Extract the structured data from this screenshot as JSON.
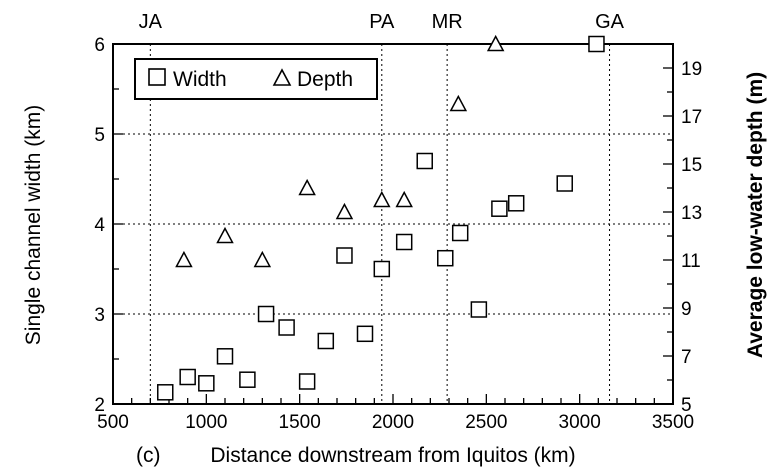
{
  "chart_data": {
    "type": "scatter",
    "panel_label": "(c)",
    "xlabel": "Distance downstream from Iquitos (km)",
    "ylabel": "Single channel width (km)",
    "y2label": "Average low-water depth (m)",
    "xlim": [
      500,
      3500
    ],
    "ylim": [
      2,
      6
    ],
    "y2lim": [
      5,
      20
    ],
    "x_ticks": [
      500,
      1000,
      1500,
      2000,
      2500,
      3000,
      3500
    ],
    "y_ticks": [
      2,
      3,
      4,
      5,
      6
    ],
    "y2_ticks": [
      5,
      7,
      9,
      11,
      13,
      15,
      17,
      19
    ],
    "grid": "dotted",
    "vertical_markers": [
      {
        "label": "JA",
        "x": 700
      },
      {
        "label": "PA",
        "x": 1940
      },
      {
        "label": "MR",
        "x": 2290
      },
      {
        "label": "GA",
        "x": 3160
      }
    ],
    "legend_position": "top-left",
    "series": [
      {
        "name": "Width",
        "marker": "square",
        "axis": "left",
        "unit": "km",
        "points": [
          {
            "x": 780,
            "y": 2.13
          },
          {
            "x": 900,
            "y": 2.3
          },
          {
            "x": 1000,
            "y": 2.23
          },
          {
            "x": 1100,
            "y": 2.53
          },
          {
            "x": 1220,
            "y": 2.27
          },
          {
            "x": 1320,
            "y": 3.0
          },
          {
            "x": 1430,
            "y": 2.85
          },
          {
            "x": 1540,
            "y": 2.25
          },
          {
            "x": 1640,
            "y": 2.7
          },
          {
            "x": 1740,
            "y": 3.65
          },
          {
            "x": 1850,
            "y": 2.78
          },
          {
            "x": 1940,
            "y": 3.5
          },
          {
            "x": 2060,
            "y": 3.8
          },
          {
            "x": 2170,
            "y": 4.7
          },
          {
            "x": 2280,
            "y": 3.62
          },
          {
            "x": 2360,
            "y": 3.9
          },
          {
            "x": 2460,
            "y": 3.05
          },
          {
            "x": 2570,
            "y": 4.17
          },
          {
            "x": 2660,
            "y": 4.23
          },
          {
            "x": 2920,
            "y": 4.45
          },
          {
            "x": 3090,
            "y": 6.0
          }
        ]
      },
      {
        "name": "Depth",
        "marker": "triangle",
        "axis": "right",
        "unit": "m",
        "points": [
          {
            "x": 880,
            "y": 11.0
          },
          {
            "x": 1100,
            "y": 12.0
          },
          {
            "x": 1300,
            "y": 11.0
          },
          {
            "x": 1540,
            "y": 14.0
          },
          {
            "x": 1740,
            "y": 13.0
          },
          {
            "x": 1940,
            "y": 13.5
          },
          {
            "x": 2060,
            "y": 13.5
          },
          {
            "x": 2350,
            "y": 17.5
          },
          {
            "x": 2550,
            "y": 20.0
          }
        ]
      }
    ]
  }
}
